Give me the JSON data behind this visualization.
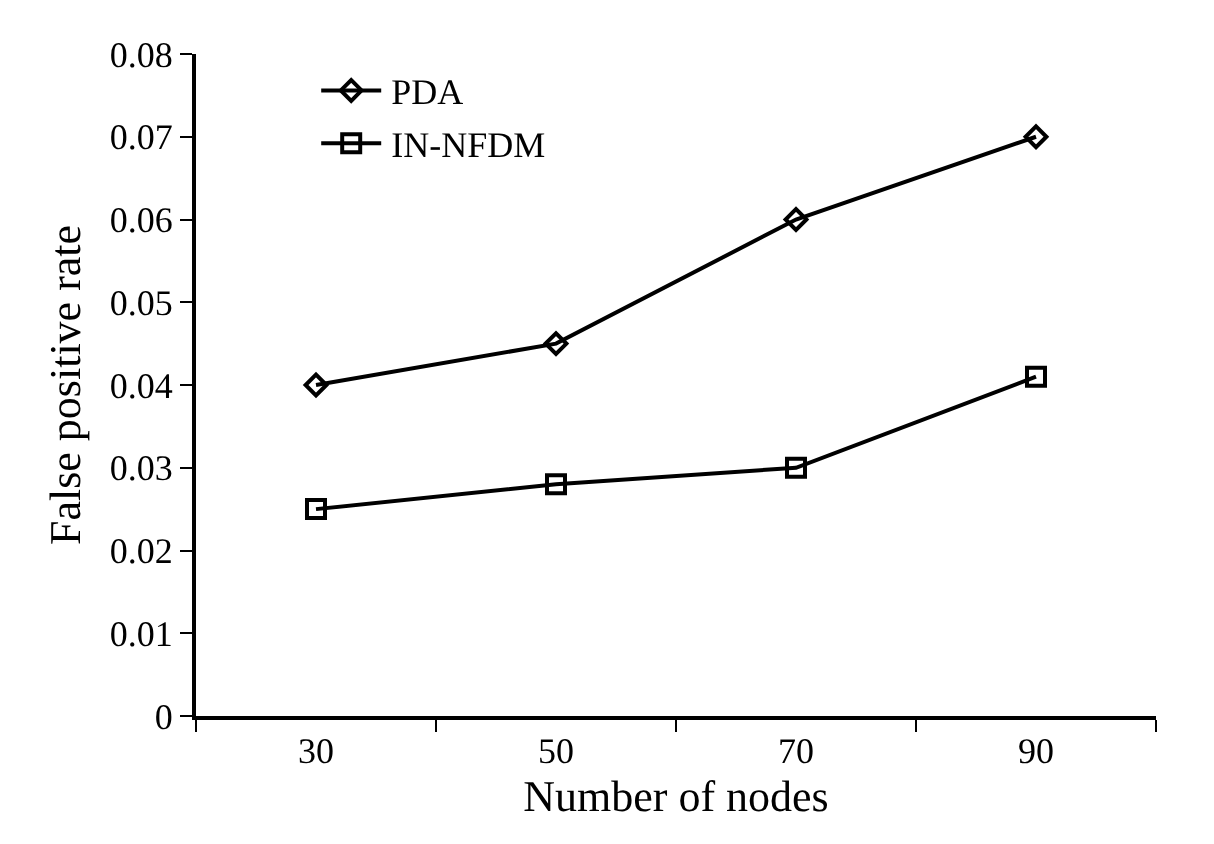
{
  "chart_data": {
    "type": "line",
    "xlabel": "Number of nodes",
    "ylabel": "False positive rate",
    "categories": [
      "30",
      "50",
      "70",
      "90"
    ],
    "series": [
      {
        "name": "PDA",
        "color": "#000000",
        "marker": "diamond",
        "values": [
          0.04,
          0.045,
          0.06,
          0.07
        ]
      },
      {
        "name": "IN-NFDM",
        "color": "#000000",
        "marker": "square",
        "values": [
          0.025,
          0.028,
          0.03,
          0.041
        ]
      }
    ],
    "ylim": [
      0,
      0.08
    ],
    "yticks": [
      0,
      0.01,
      0.02,
      0.03,
      0.04,
      0.05,
      0.06,
      0.07,
      0.08
    ],
    "grid": false,
    "legend": "top left",
    "line_style": "solid"
  }
}
